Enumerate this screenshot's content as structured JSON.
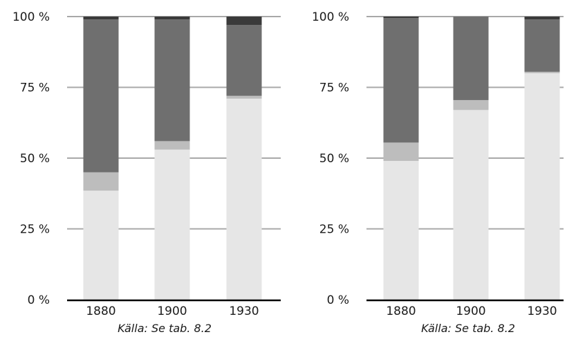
{
  "chart_data": [
    {
      "type": "bar",
      "stacked": true,
      "categories": [
        "1880",
        "1900",
        "1930"
      ],
      "y_ticks": [
        "0 %",
        "25 %",
        "50 %",
        "75 %",
        "100 %"
      ],
      "ylim": [
        0,
        100
      ],
      "grid": true,
      "series": [
        {
          "color": "#e6e6e6",
          "values": [
            38.5,
            53,
            71
          ]
        },
        {
          "color": "#bdbdbd",
          "values": [
            6.5,
            3,
            1
          ]
        },
        {
          "color": "#6f6f6f",
          "values": [
            54,
            43,
            25
          ]
        },
        {
          "color": "#3a3a3a",
          "values": [
            1,
            1,
            3
          ]
        }
      ],
      "source_note": "Källa: Se tab. 8.2"
    },
    {
      "type": "bar",
      "stacked": true,
      "categories": [
        "1880",
        "1900",
        "1930"
      ],
      "y_ticks": [
        "0 %",
        "25 %",
        "50 %",
        "75 %",
        "100 %"
      ],
      "ylim": [
        0,
        100
      ],
      "grid": true,
      "series": [
        {
          "color": "#e6e6e6",
          "values": [
            49,
            67,
            80
          ]
        },
        {
          "color": "#bdbdbd",
          "values": [
            6.5,
            3.5,
            0.5
          ]
        },
        {
          "color": "#6f6f6f",
          "values": [
            44,
            29.5,
            18.5
          ]
        },
        {
          "color": "#3a3a3a",
          "values": [
            0.5,
            0,
            1
          ]
        }
      ],
      "source_note": "Källa: Se tab. 8.2"
    }
  ]
}
